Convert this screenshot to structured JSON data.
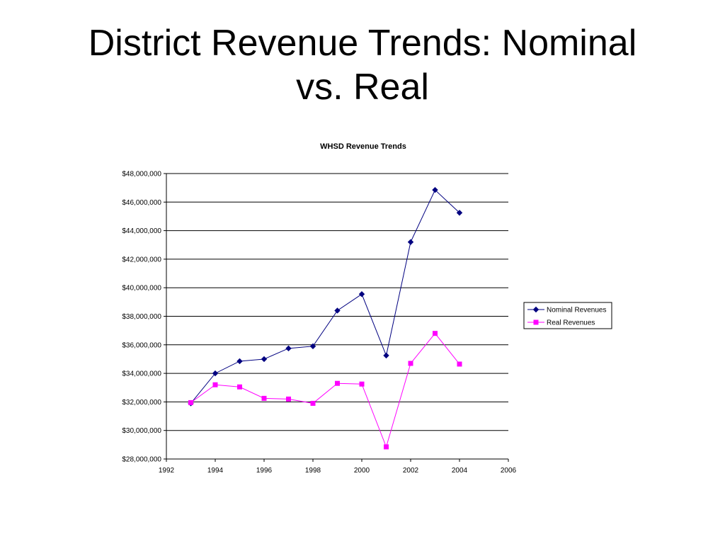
{
  "slide": {
    "title_line1": "District Revenue Trends: Nominal",
    "title_line2": "vs. Real"
  },
  "chart_data": {
    "type": "line",
    "title": "WHSD Revenue Trends",
    "xlabel": "",
    "ylabel": "",
    "xlim": [
      1992,
      2006
    ],
    "ylim": [
      28000000,
      48000000
    ],
    "x_ticks": [
      1992,
      1994,
      1996,
      1998,
      2000,
      2002,
      2004,
      2006
    ],
    "y_ticks": [
      28000000,
      30000000,
      32000000,
      34000000,
      36000000,
      38000000,
      40000000,
      42000000,
      44000000,
      46000000,
      48000000
    ],
    "y_tick_labels": [
      "$28,000,000",
      "$30,000,000",
      "$32,000,000",
      "$34,000,000",
      "$36,000,000",
      "$38,000,000",
      "$40,000,000",
      "$42,000,000",
      "$44,000,000",
      "$46,000,000",
      "$48,000,000"
    ],
    "grid": "horizontal",
    "legend_position": "right",
    "x": [
      1993,
      1994,
      1995,
      1996,
      1997,
      1998,
      1999,
      2000,
      2001,
      2002,
      2003,
      2004
    ],
    "series": [
      {
        "name": "Nominal Revenues",
        "color": "#000080",
        "marker": "diamond",
        "values": [
          31900000,
          34000000,
          34850000,
          35000000,
          35750000,
          35900000,
          38400000,
          39550000,
          35250000,
          43200000,
          46850000,
          45250000
        ]
      },
      {
        "name": "Real Revenues",
        "color": "#ff00ff",
        "marker": "square",
        "values": [
          31950000,
          33200000,
          33050000,
          32250000,
          32200000,
          31900000,
          33300000,
          33250000,
          28850000,
          34700000,
          36800000,
          34650000
        ]
      }
    ]
  }
}
